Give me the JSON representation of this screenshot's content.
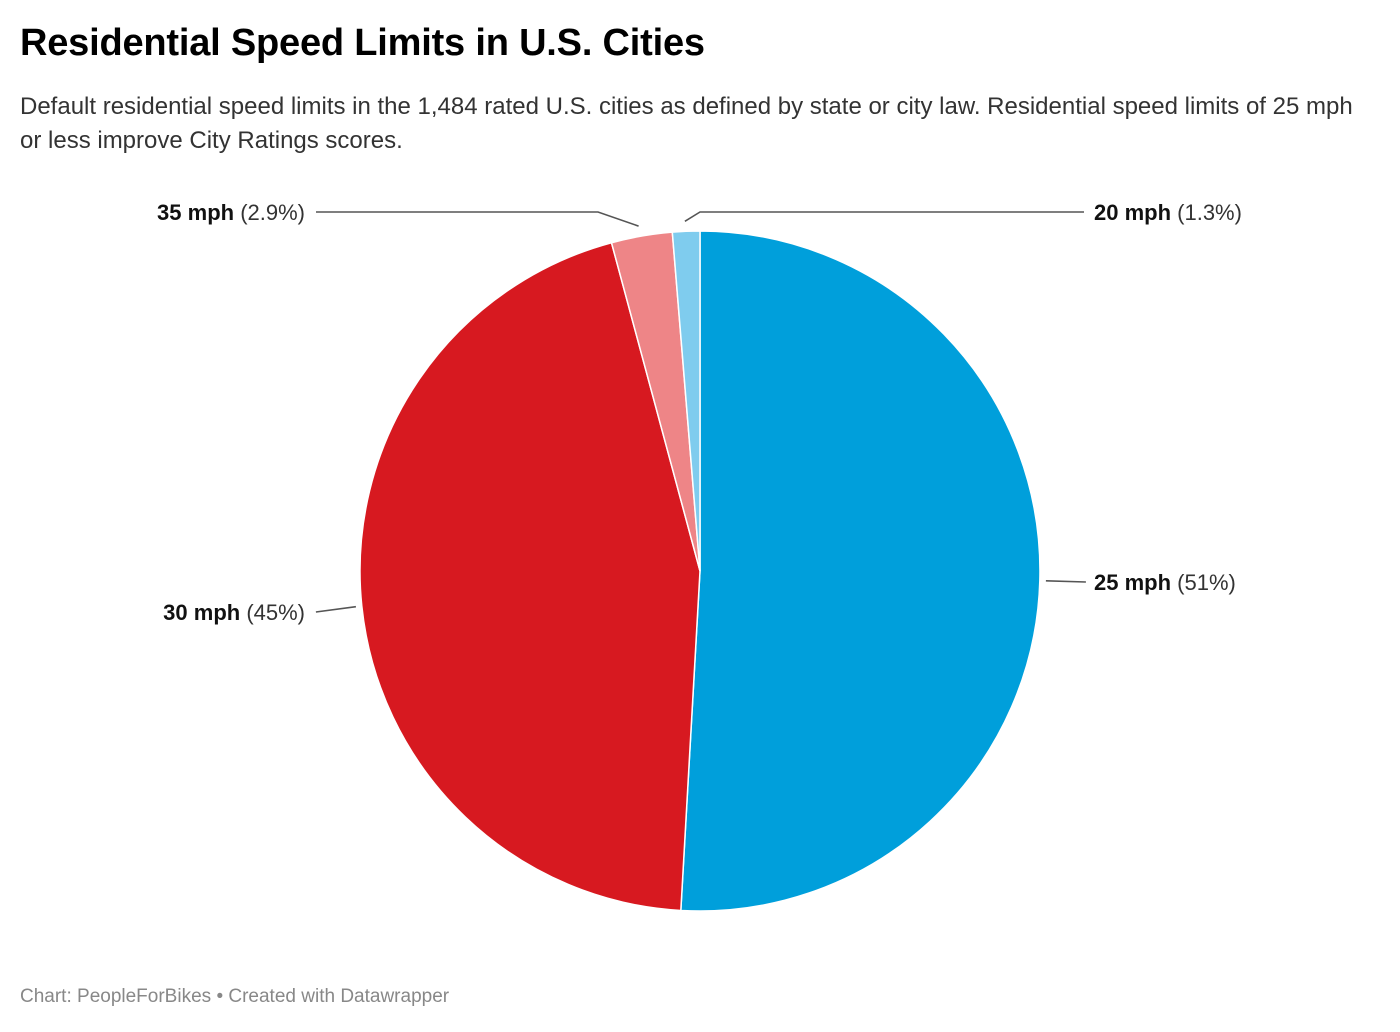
{
  "header": {
    "title": "Residential Speed Limits in U.S. Cities",
    "subtitle": "Default residential speed limits in the 1,484 rated U.S. cities as defined by state or city law. Residential speed limits of 25 mph or less improve City Ratings scores."
  },
  "footer": {
    "source": "Chart: PeopleForBikes",
    "separator": "•",
    "credit": "Created with Datawrapper"
  },
  "chart_data": {
    "type": "pie",
    "title": "Residential Speed Limits in U.S. Cities",
    "start_angle": "12 o'clock",
    "direction": "clockwise",
    "slices": [
      {
        "name": "25 mph",
        "value": 51,
        "label": "(51%)",
        "color": "#009FDB"
      },
      {
        "name": "30 mph",
        "value": 45,
        "label": "(45%)",
        "color": "#D71920"
      },
      {
        "name": "35 mph",
        "value": 2.9,
        "label": "(2.9%)",
        "color": "#EE8587"
      },
      {
        "name": "20 mph",
        "value": 1.3,
        "label": "(1.3%)",
        "color": "#7FCCEE"
      }
    ]
  }
}
